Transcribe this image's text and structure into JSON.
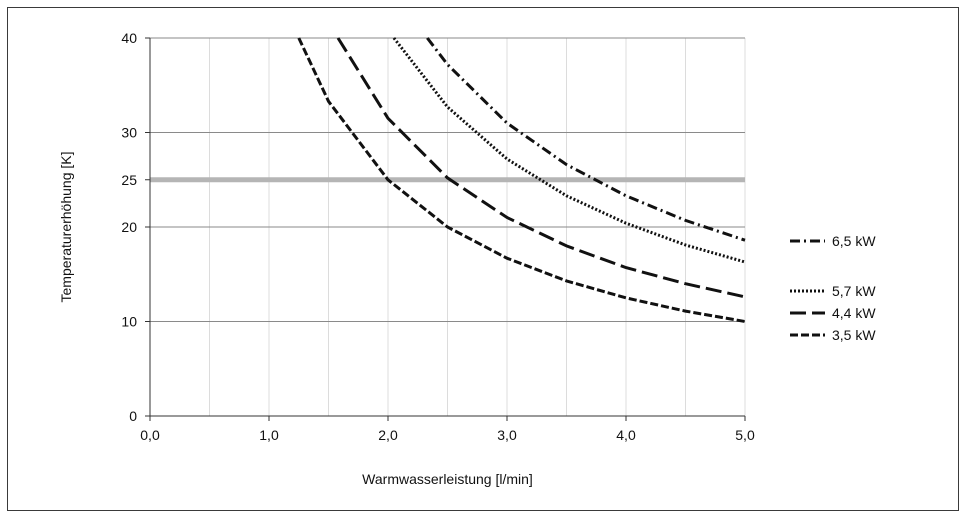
{
  "chart_data": {
    "type": "line",
    "xlabel": "Warmwasserleistung [l/min]",
    "ylabel": "Temperaturerhöhung [K]",
    "xlim": [
      0,
      5
    ],
    "ylim": [
      0,
      40
    ],
    "xticks": [
      "0,0",
      "1,0",
      "2,0",
      "3,0",
      "4,0",
      "5,0"
    ],
    "yticks": [
      "0",
      "10",
      "20",
      "25",
      "30",
      "40"
    ],
    "x_minor_grid": [
      0.5,
      1.5,
      2.5,
      3.5,
      4.5
    ],
    "highlight_line": {
      "y": 25,
      "color": "#b5b5b5"
    },
    "grid": true,
    "legend_position": "right",
    "series": [
      {
        "name": "6,5 kW",
        "style": "dash-dot",
        "points": [
          [
            2.33,
            40
          ],
          [
            2.5,
            37.2
          ],
          [
            3.0,
            31.0
          ],
          [
            3.5,
            26.6
          ],
          [
            4.0,
            23.3
          ],
          [
            4.5,
            20.7
          ],
          [
            5.0,
            18.6
          ]
        ]
      },
      {
        "name": "5,7 kW",
        "style": "dotted",
        "points": [
          [
            2.05,
            40
          ],
          [
            2.5,
            32.7
          ],
          [
            3.0,
            27.2
          ],
          [
            3.5,
            23.3
          ],
          [
            4.0,
            20.4
          ],
          [
            4.5,
            18.1
          ],
          [
            5.0,
            16.3
          ]
        ]
      },
      {
        "name": "4,4 kW",
        "style": "long-dash",
        "points": [
          [
            1.58,
            40
          ],
          [
            2.0,
            31.5
          ],
          [
            2.5,
            25.2
          ],
          [
            3.0,
            21.0
          ],
          [
            3.5,
            18.0
          ],
          [
            4.0,
            15.7
          ],
          [
            4.5,
            14.0
          ],
          [
            5.0,
            12.6
          ]
        ]
      },
      {
        "name": "3,5 kW",
        "style": "dashed",
        "points": [
          [
            1.25,
            40
          ],
          [
            1.5,
            33.3
          ],
          [
            2.0,
            25.0
          ],
          [
            2.5,
            20.0
          ],
          [
            3.0,
            16.7
          ],
          [
            3.5,
            14.3
          ],
          [
            4.0,
            12.5
          ],
          [
            4.5,
            11.1
          ],
          [
            5.0,
            10.0
          ]
        ]
      }
    ]
  }
}
